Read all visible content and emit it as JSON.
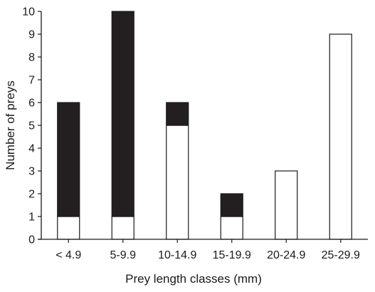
{
  "chart_data": {
    "type": "bar",
    "stacked": true,
    "title": "",
    "xlabel": "Prey length classes (mm)",
    "ylabel": "Number of preys",
    "categories": [
      "< 4.9",
      "5-9.9",
      "10-14.9",
      "15-19.9",
      "20-24.9",
      "25-29.9"
    ],
    "series": [
      {
        "values": [
          1,
          1,
          5,
          1,
          3,
          9
        ],
        "color": "#ffffff"
      },
      {
        "values": [
          5,
          9,
          1,
          1,
          0,
          0
        ],
        "color": "#231f20"
      }
    ],
    "ylim": [
      0,
      10
    ],
    "yticks": [
      "0",
      "1",
      "2",
      "3",
      "4",
      "5",
      "6",
      "7",
      "8",
      "9",
      "10"
    ],
    "grid": false,
    "legend": "none"
  }
}
